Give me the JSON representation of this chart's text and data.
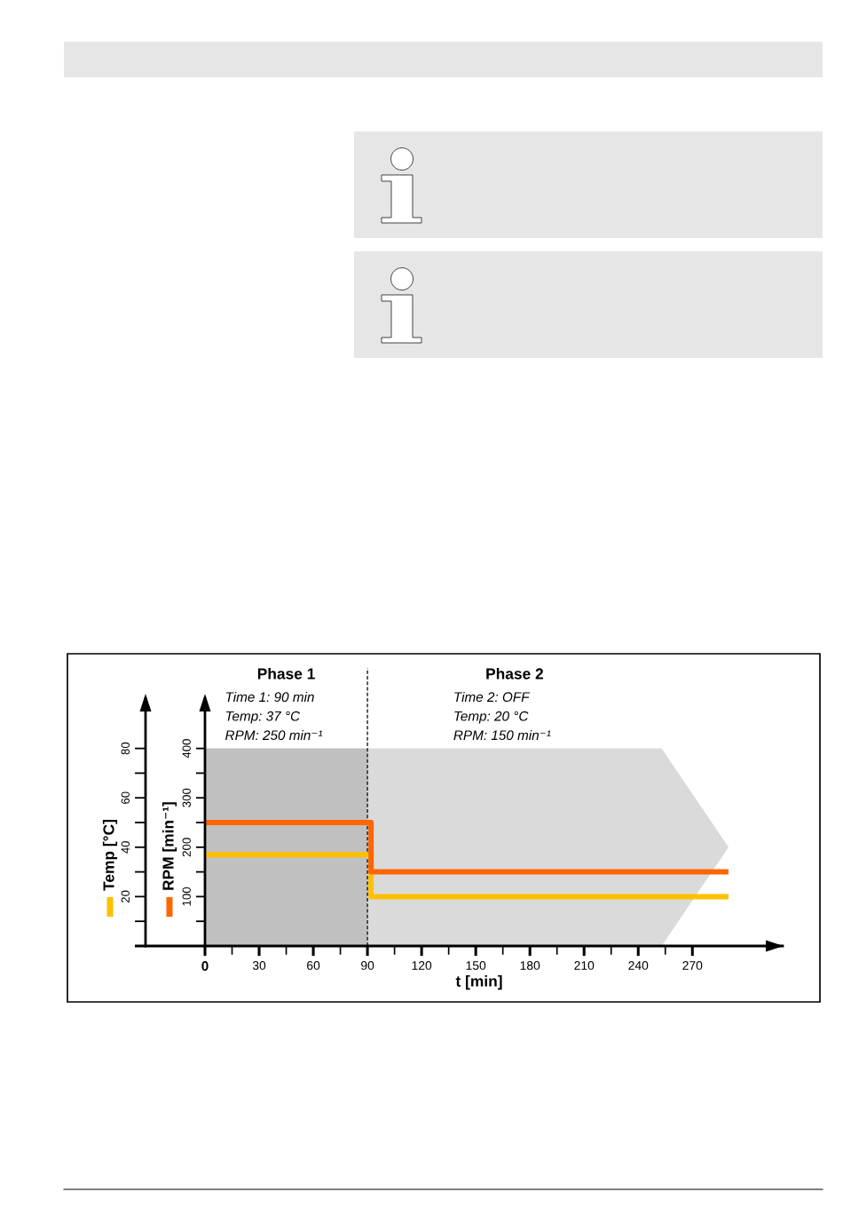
{
  "chart_data": {
    "type": "step",
    "xlabel": "t [min]",
    "ylabel": "RPM [min⁻¹]",
    "y2label": "Temp [°C]",
    "xlim": [
      0,
      320
    ],
    "xticks": [
      0,
      {
        "value": 15,
        "label": null
      },
      30,
      {
        "value": 45,
        "label": null
      },
      60,
      {
        "value": 75,
        "label": null
      },
      90,
      {
        "value": 105,
        "label": null
      },
      120,
      {
        "value": 135,
        "label": null
      },
      150,
      {
        "value": 165,
        "label": null
      },
      180,
      {
        "value": 195,
        "label": null
      },
      210,
      {
        "value": 225,
        "label": null
      },
      240,
      {
        "value": 255,
        "label": null
      },
      270
    ],
    "ylim": [
      0,
      500
    ],
    "yticks": [
      {
        "value": 50,
        "label": null
      },
      100,
      {
        "value": 150,
        "label": null
      },
      200,
      {
        "value": 250,
        "label": null
      },
      300,
      {
        "value": 350,
        "label": null
      },
      400
    ],
    "y2lim": [
      0,
      100
    ],
    "y2ticks": [
      {
        "value": 10,
        "label": null
      },
      20,
      {
        "value": 30,
        "label": null
      },
      40,
      {
        "value": 50,
        "label": null
      },
      60,
      {
        "value": 70,
        "label": null
      },
      80
    ],
    "series": [
      {
        "color": "#ffc000",
        "axis": "y2",
        "x": [
          0,
          92,
          290
        ],
        "values": [
          37,
          20,
          20
        ]
      },
      {
        "color": "#ff6600",
        "axis": "y",
        "x": [
          0,
          92,
          290
        ],
        "values": [
          250,
          150,
          150
        ]
      }
    ],
    "bands": [
      {
        "axis": "x",
        "from": 0,
        "to": 90,
        "color": "#c0c0c0"
      },
      {
        "axis": "x",
        "from": 90,
        "to": 290,
        "color": "#dadada"
      }
    ],
    "ref_lines": [
      {
        "axis": "x",
        "value": 90,
        "color": "#000000",
        "line_style": "dashed"
      }
    ],
    "annotations": [
      "Phase 1",
      "Time 1: 90 min",
      "Temp: 37 °C",
      "RPM: 250 min⁻¹",
      "Phase 2",
      "Time 2: OFF",
      "Temp: 20 °C",
      "RPM: 150 min⁻¹"
    ]
  }
}
